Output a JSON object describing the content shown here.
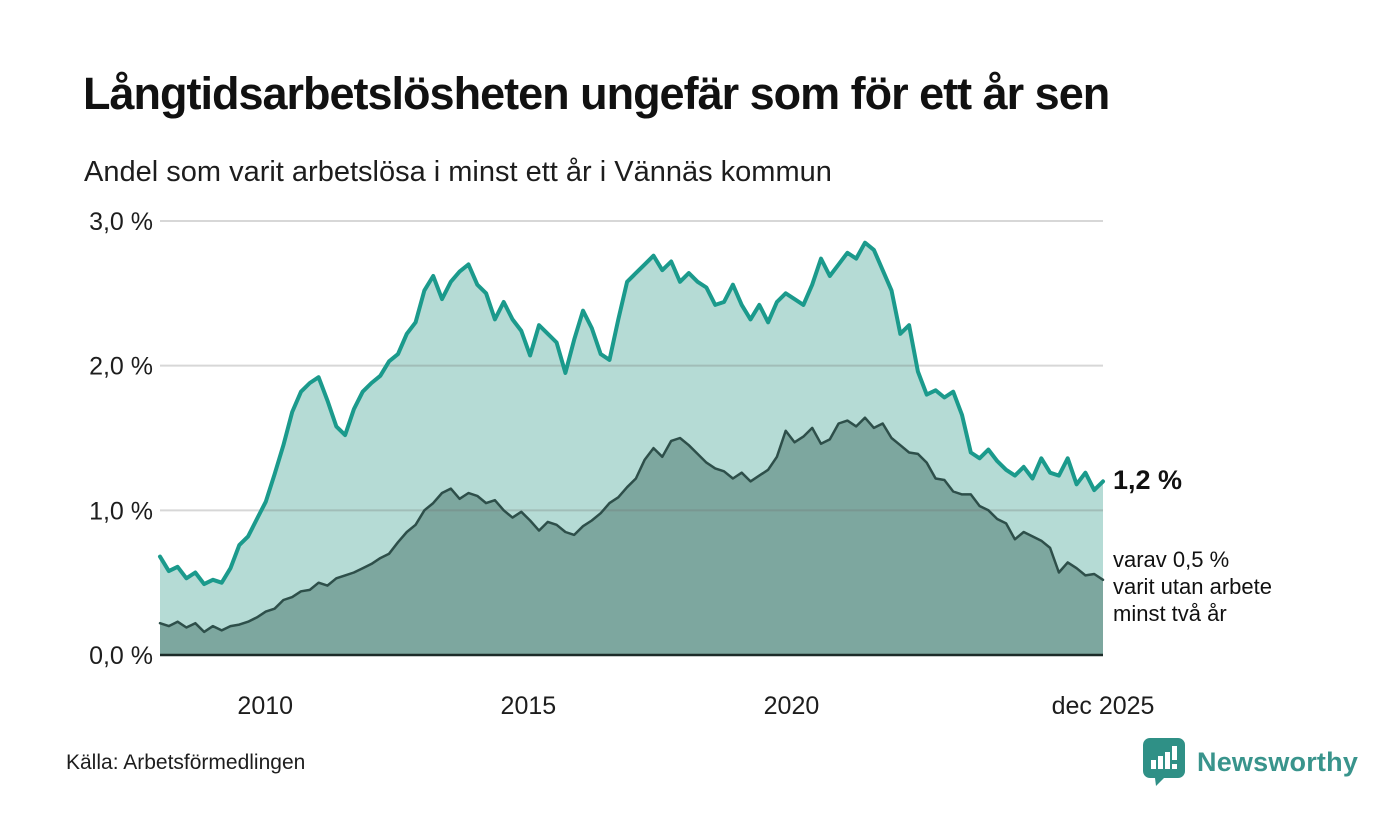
{
  "title": "Långtidsarbetslösheten ungefär som för ett år sen",
  "subtitle": "Andel som varit arbetslösa i minst ett år i Vännäs kommun",
  "source": "Källa: Arbetsförmedlingen",
  "logo": {
    "text": "Newsworthy",
    "color": "#39948c",
    "icon": "newsworthy-bars-bubble-icon"
  },
  "annotations": {
    "latest_total": "1,2 %",
    "two_year_lines": [
      "varav 0,5 %",
      "varit utan arbete",
      "minst två år"
    ]
  },
  "colors": {
    "total_line": "#1b9a8c",
    "total_fill": "#b5dbd5",
    "two_year_line": "#2e4f4a",
    "two_year_fill": "#7da79f",
    "gridline": "rgba(110,110,110,0.28)",
    "axis": "#1c2b28",
    "text": "#1d1d1d"
  },
  "chart_data": {
    "type": "area",
    "title": "Andel som varit arbetslösa i minst ett år i Vännäs kommun",
    "xlabel": "",
    "ylabel": "",
    "grid": "horizontal",
    "legend": "none",
    "xlim": [
      2008.0,
      2025.92
    ],
    "ylim": [
      0,
      3.0
    ],
    "x_start_year": 2008,
    "x_step_months": 2,
    "x_ticks": [
      {
        "label": "2010",
        "year": 2010
      },
      {
        "label": "2015",
        "year": 2015
      },
      {
        "label": "2020",
        "year": 2020
      },
      {
        "label": "dec 2025",
        "year": 2025.92
      }
    ],
    "y_ticks": [
      {
        "label": "0,0 %",
        "value": 0
      },
      {
        "label": "1,0 %",
        "value": 1
      },
      {
        "label": "2,0 %",
        "value": 2
      },
      {
        "label": "3,0 %",
        "value": 3
      }
    ],
    "series": [
      {
        "name": "Andel arbetslösa minst ett år",
        "latest_label": "1,2 %",
        "color": "#1b9a8c",
        "fill": "#b5dbd5",
        "stroke_width": 4,
        "values": [
          0.68,
          0.58,
          0.61,
          0.53,
          0.57,
          0.49,
          0.52,
          0.5,
          0.6,
          0.76,
          0.82,
          0.94,
          1.06,
          1.25,
          1.45,
          1.68,
          1.82,
          1.88,
          1.92,
          1.76,
          1.58,
          1.52,
          1.7,
          1.82,
          1.88,
          1.93,
          2.03,
          2.08,
          2.22,
          2.3,
          2.52,
          2.62,
          2.46,
          2.58,
          2.65,
          2.7,
          2.56,
          2.5,
          2.32,
          2.44,
          2.32,
          2.24,
          2.07,
          2.28,
          2.22,
          2.16,
          1.95,
          2.18,
          2.38,
          2.26,
          2.08,
          2.04,
          2.32,
          2.58,
          2.64,
          2.7,
          2.76,
          2.66,
          2.72,
          2.58,
          2.64,
          2.58,
          2.54,
          2.42,
          2.44,
          2.56,
          2.42,
          2.32,
          2.42,
          2.3,
          2.44,
          2.5,
          2.46,
          2.42,
          2.56,
          2.74,
          2.62,
          2.7,
          2.78,
          2.74,
          2.85,
          2.8,
          2.66,
          2.52,
          2.22,
          2.28,
          1.96,
          1.8,
          1.83,
          1.78,
          1.82,
          1.66,
          1.4,
          1.36,
          1.42,
          1.34,
          1.28,
          1.24,
          1.3,
          1.22,
          1.36,
          1.26,
          1.24,
          1.36,
          1.18,
          1.26,
          1.14,
          1.2
        ]
      },
      {
        "name": "varav utan arbete minst två år",
        "latest_label": "varav 0,5 %",
        "color": "#2e4f4a",
        "fill": "#7da79f",
        "stroke_width": 2.5,
        "values": [
          0.22,
          0.2,
          0.23,
          0.19,
          0.22,
          0.16,
          0.2,
          0.17,
          0.2,
          0.21,
          0.23,
          0.26,
          0.3,
          0.32,
          0.38,
          0.4,
          0.44,
          0.45,
          0.5,
          0.48,
          0.53,
          0.55,
          0.57,
          0.6,
          0.63,
          0.67,
          0.7,
          0.78,
          0.85,
          0.9,
          1.0,
          1.05,
          1.12,
          1.15,
          1.08,
          1.12,
          1.1,
          1.05,
          1.07,
          1.0,
          0.95,
          0.99,
          0.93,
          0.86,
          0.92,
          0.9,
          0.85,
          0.83,
          0.89,
          0.93,
          0.98,
          1.05,
          1.09,
          1.16,
          1.22,
          1.35,
          1.43,
          1.37,
          1.48,
          1.5,
          1.45,
          1.39,
          1.33,
          1.29,
          1.27,
          1.22,
          1.26,
          1.2,
          1.24,
          1.28,
          1.37,
          1.55,
          1.47,
          1.51,
          1.57,
          1.46,
          1.49,
          1.6,
          1.62,
          1.58,
          1.64,
          1.57,
          1.6,
          1.5,
          1.45,
          1.4,
          1.39,
          1.33,
          1.22,
          1.21,
          1.13,
          1.11,
          1.11,
          1.03,
          1.0,
          0.94,
          0.91,
          0.8,
          0.85,
          0.82,
          0.79,
          0.74,
          0.57,
          0.64,
          0.6,
          0.55,
          0.56,
          0.52
        ]
      }
    ]
  }
}
